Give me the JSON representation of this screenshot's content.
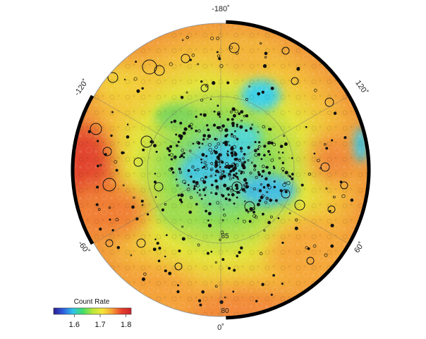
{
  "map": {
    "longitude_labels": {
      "top": "-180˚",
      "bottom": "0˚",
      "upper_left": "-120˚",
      "upper_right": "120˚",
      "lower_left": "-60˚",
      "lower_right": "60˚"
    },
    "latitude_labels": {
      "inner": "85",
      "outer": "80"
    }
  },
  "colorbar": {
    "title": "Count Rate",
    "ticks": [
      "1.6",
      "1.7",
      "1.8"
    ],
    "range": [
      1.52,
      1.82
    ],
    "tick_values": [
      1.6,
      1.7,
      1.8
    ],
    "colors": [
      "#2b1d8f",
      "#2f5ee0",
      "#2fc3ea",
      "#3fdc6a",
      "#b6e63a",
      "#f4e63a",
      "#f6a436",
      "#e8412c",
      "#c9232b"
    ]
  }
}
